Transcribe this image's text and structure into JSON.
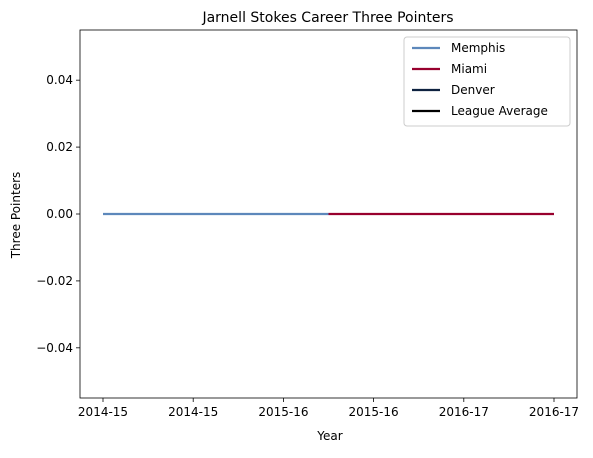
{
  "chart_data": {
    "type": "line",
    "title": "Jarnell Stokes Career Three Pointers",
    "xlabel": "Year",
    "ylabel": "Three Pointers",
    "x_tick_labels": [
      "2014-15",
      "2014-15",
      "2015-16",
      "2015-16",
      "2016-17",
      "2016-17"
    ],
    "ylim": [
      -0.055,
      0.055
    ],
    "y_ticks": [
      -0.04,
      -0.02,
      0.0,
      0.02,
      0.04
    ],
    "y_tick_labels": [
      "−0.04",
      "−0.02",
      "0.00",
      "0.02",
      "0.04"
    ],
    "grid": false,
    "legend_position": "top-right",
    "series": [
      {
        "name": "Memphis",
        "color": "#5d88bb",
        "x": [
          0,
          2.5
        ],
        "values": [
          0,
          0
        ]
      },
      {
        "name": "Miami",
        "color": "#98002e",
        "x": [
          2.5,
          5
        ],
        "values": [
          0,
          0
        ]
      },
      {
        "name": "Denver",
        "color": "#0e2240",
        "x": [],
        "values": []
      },
      {
        "name": "League Average",
        "color": "#000000",
        "x": [],
        "values": []
      }
    ]
  }
}
